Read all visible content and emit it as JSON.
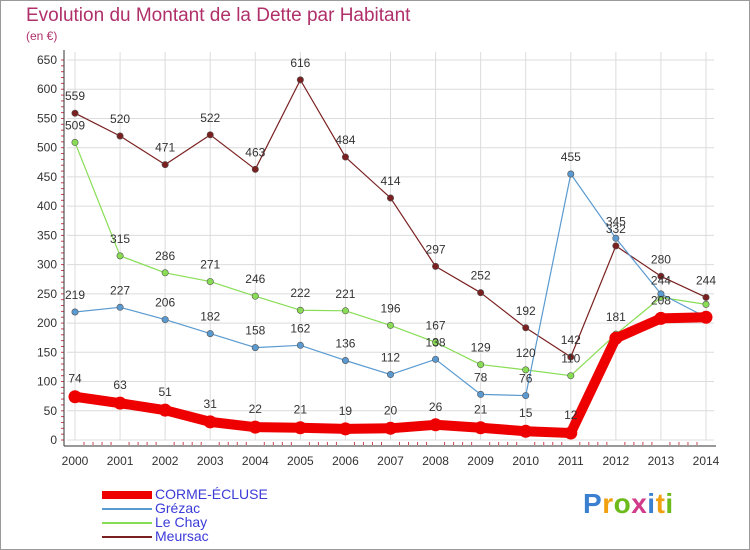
{
  "header": {
    "title": "Evolution du Montant de la Dette par Habitant",
    "subtitle": "(en €)"
  },
  "logo": {
    "text": "Proxiti"
  },
  "colors": {
    "title": "#b0306a",
    "grid": "#dcdcdc",
    "axis": "#333333",
    "tick_minor": "#d04050"
  },
  "chart_data": {
    "type": "line",
    "title": "Evolution du Montant de la Dette par Habitant",
    "subtitle": "(en €)",
    "xlabel": "",
    "ylabel": "",
    "ylim": [
      0,
      650
    ],
    "y_ticks": [
      0,
      50,
      100,
      150,
      200,
      250,
      300,
      350,
      400,
      450,
      500,
      550,
      600,
      650
    ],
    "grid": true,
    "legend_position": "bottom-left",
    "x": [
      "2000",
      "2001",
      "2002",
      "2003",
      "2004",
      "2005",
      "2006",
      "2007",
      "2008",
      "2009",
      "2010",
      "2011",
      "2012",
      "2013",
      "2014"
    ],
    "series": [
      {
        "name": "CORME-ÉCLUSE",
        "color": "#ee0000",
        "label_color": "#333333",
        "values": [
          74,
          63,
          51,
          31,
          22,
          21,
          19,
          20,
          26,
          21,
          15,
          12,
          174,
          208,
          210
        ],
        "labels": [
          "74",
          "63",
          "51",
          "31",
          "22",
          "21",
          "19",
          "20",
          "26",
          "21",
          "15",
          "12",
          "",
          "208",
          ""
        ]
      },
      {
        "name": "Grézac",
        "color": "#5a9ad0",
        "label_color": "#333333",
        "values": [
          219,
          227,
          206,
          182,
          158,
          162,
          136,
          112,
          138,
          78,
          76,
          455,
          345,
          250,
          210
        ],
        "labels": [
          "219",
          "227",
          "206",
          "182",
          "158",
          "162",
          "136",
          "112",
          "138",
          "78",
          "76",
          "455",
          "345",
          "",
          ""
        ]
      },
      {
        "name": "Le Chay",
        "color": "#88dd55",
        "label_color": "#333333",
        "values": [
          509,
          315,
          286,
          271,
          246,
          222,
          221,
          196,
          167,
          129,
          120,
          110,
          181,
          244,
          232
        ],
        "labels": [
          "509",
          "315",
          "286",
          "271",
          "246",
          "222",
          "221",
          "196",
          "167",
          "129",
          "120",
          "110",
          "181",
          "244",
          ""
        ]
      },
      {
        "name": "Meursac",
        "color": "#7a2020",
        "label_color": "#333333",
        "values": [
          559,
          520,
          471,
          522,
          463,
          616,
          484,
          414,
          297,
          252,
          192,
          142,
          332,
          280,
          244
        ],
        "labels": [
          "559",
          "520",
          "471",
          "522",
          "463",
          "616",
          "484",
          "414",
          "297",
          "252",
          "192",
          "142",
          "332",
          "280",
          "244"
        ]
      }
    ]
  },
  "legend_order": [
    0,
    1,
    2,
    3
  ]
}
